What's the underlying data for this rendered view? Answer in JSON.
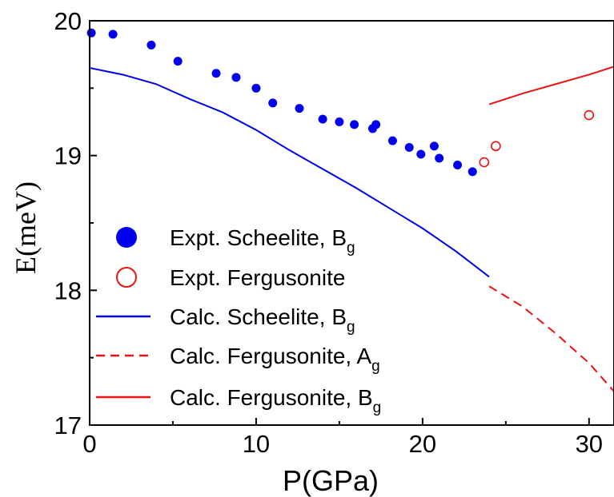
{
  "chart_data": {
    "type": "scatter",
    "xlabel": "P(GPa)",
    "ylabel": "E(meV)",
    "xlim": [
      0,
      31.5
    ],
    "ylim": [
      17,
      20
    ],
    "xticks": [
      0,
      10,
      20,
      30
    ],
    "yticks": [
      17,
      18,
      19,
      20
    ],
    "x_tick_labels": [
      "0",
      "10",
      "20",
      "30"
    ],
    "y_tick_labels": [
      "17",
      "18",
      "19",
      "20"
    ],
    "grid": false,
    "legend_position": "left",
    "series": [
      {
        "name": "Expt. Scheelite, B",
        "name_subscript": "g",
        "kind": "points",
        "marker": "filled-circle",
        "color": "#0000ee",
        "x": [
          0.1,
          1.4,
          3.7,
          5.3,
          7.6,
          8.8,
          10.0,
          11.0,
          12.6,
          14.0,
          15.0,
          15.9,
          17.0,
          17.2,
          18.2,
          19.2,
          19.9,
          20.7,
          21.0,
          22.1,
          23.0
        ],
        "y": [
          19.91,
          19.9,
          19.82,
          19.7,
          19.61,
          19.58,
          19.5,
          19.39,
          19.35,
          19.27,
          19.25,
          19.23,
          19.2,
          19.23,
          19.11,
          19.06,
          19.01,
          19.07,
          18.98,
          18.93,
          18.88
        ]
      },
      {
        "name": "Expt. Fergusonite",
        "kind": "points",
        "marker": "open-circle",
        "color": "#ee1111",
        "x": [
          23.7,
          24.4,
          30.0
        ],
        "y": [
          18.95,
          19.07,
          19.3
        ]
      },
      {
        "name": "Calc. Scheelite, B",
        "name_subscript": "g",
        "kind": "line",
        "dash": "solid",
        "color": "#0000ee",
        "x": [
          0,
          2,
          4,
          6,
          8,
          10,
          12,
          14,
          16,
          18,
          20,
          22,
          24
        ],
        "y": [
          19.65,
          19.6,
          19.53,
          19.42,
          19.32,
          19.19,
          19.04,
          18.9,
          18.76,
          18.61,
          18.46,
          18.29,
          18.1
        ]
      },
      {
        "name": "Calc. Fergusonite, A",
        "name_subscript": "g",
        "kind": "line",
        "dash": "dashed",
        "color": "#ee1111",
        "x": [
          24,
          26,
          28,
          30,
          31.5
        ],
        "y": [
          18.03,
          17.88,
          17.68,
          17.46,
          17.25
        ]
      },
      {
        "name": "Calc. Fergusonite, B",
        "name_subscript": "g",
        "kind": "line",
        "dash": "solid",
        "color": "#ee1111",
        "x": [
          24,
          26,
          28,
          30,
          31.5
        ],
        "y": [
          19.38,
          19.46,
          19.53,
          19.6,
          19.66
        ]
      }
    ]
  }
}
